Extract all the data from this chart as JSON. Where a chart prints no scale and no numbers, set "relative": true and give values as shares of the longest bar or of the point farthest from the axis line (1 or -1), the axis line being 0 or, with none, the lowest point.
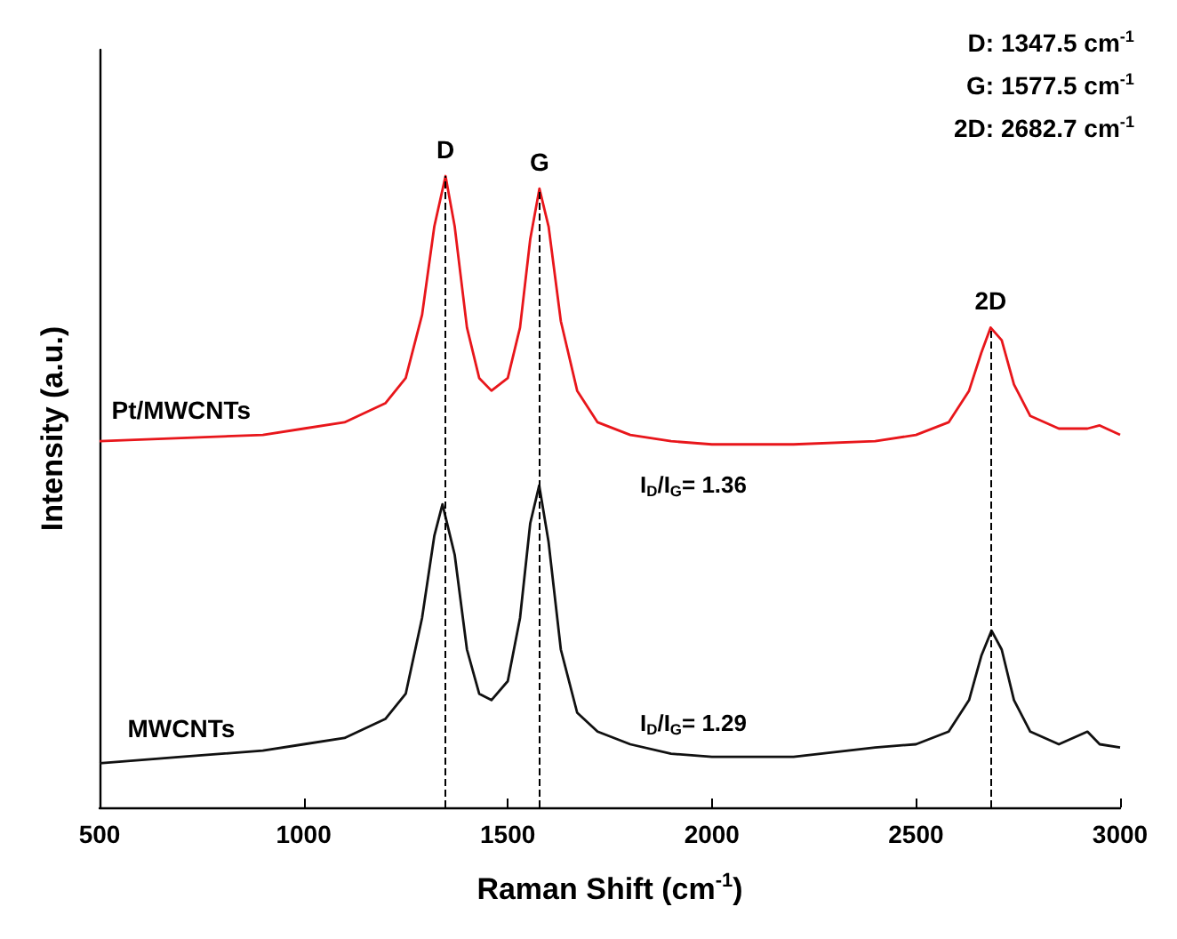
{
  "chart_data": {
    "type": "line",
    "relative": true,
    "xlabel": "Raman Shift (cm$^{-1}$)",
    "ylabel": "Intensity (a.u.)",
    "xlim": [
      500,
      3000
    ],
    "xticks": [
      500,
      1000,
      1500,
      2000,
      2500,
      3000
    ],
    "grid": false,
    "legend": false,
    "marker": "none",
    "line_style": "solid",
    "series": [
      {
        "name": "Pt/MWCNTs",
        "color": "#e8161b",
        "x": [
          500,
          700,
          900,
          1000,
          1100,
          1200,
          1250,
          1290,
          1320,
          1347.5,
          1370,
          1400,
          1430,
          1460,
          1500,
          1530,
          1555,
          1577.5,
          1600,
          1630,
          1670,
          1720,
          1800,
          1900,
          2000,
          2200,
          2400,
          2500,
          2580,
          2630,
          2660,
          2682.7,
          2710,
          2740,
          2780,
          2850,
          2920,
          2950,
          3000
        ],
        "values": [
          0.58,
          0.585,
          0.59,
          0.6,
          0.61,
          0.64,
          0.68,
          0.78,
          0.92,
          1.0,
          0.92,
          0.76,
          0.68,
          0.66,
          0.68,
          0.76,
          0.9,
          0.98,
          0.92,
          0.77,
          0.66,
          0.61,
          0.59,
          0.58,
          0.575,
          0.575,
          0.58,
          0.59,
          0.61,
          0.66,
          0.72,
          0.76,
          0.74,
          0.67,
          0.62,
          0.6,
          0.6,
          0.605,
          0.59
        ]
      },
      {
        "name": "MWCNTs",
        "color": "#111111",
        "x": [
          500,
          700,
          900,
          1000,
          1100,
          1200,
          1250,
          1290,
          1320,
          1340,
          1370,
          1400,
          1430,
          1460,
          1500,
          1530,
          1555,
          1577,
          1600,
          1630,
          1670,
          1720,
          1800,
          1900,
          2000,
          2200,
          2400,
          2500,
          2580,
          2630,
          2660,
          2685,
          2710,
          2740,
          2780,
          2850,
          2920,
          2950,
          3000
        ],
        "values": [
          0.07,
          0.08,
          0.09,
          0.1,
          0.11,
          0.14,
          0.18,
          0.3,
          0.43,
          0.48,
          0.4,
          0.25,
          0.18,
          0.17,
          0.2,
          0.3,
          0.45,
          0.51,
          0.42,
          0.25,
          0.15,
          0.12,
          0.1,
          0.085,
          0.08,
          0.08,
          0.095,
          0.1,
          0.12,
          0.17,
          0.24,
          0.28,
          0.25,
          0.17,
          0.12,
          0.1,
          0.12,
          0.1,
          0.095
        ]
      }
    ],
    "ref_lines": [
      {
        "axis": "x",
        "value": 1347.5,
        "label": "D",
        "color": "#000000",
        "line_style": "dashed"
      },
      {
        "axis": "x",
        "value": 1577.5,
        "label": "G",
        "color": "#000000",
        "line_style": "dashed"
      },
      {
        "axis": "x",
        "value": 2682.7,
        "label": "2D",
        "color": "#000000",
        "line_style": "dashed"
      }
    ],
    "annotations": [
      "D: 1347.5 cm$^{-1}$",
      "G: 1577.5 cm$^{-1}$",
      "2D: 2682.7 cm$^{-1}$",
      "I$_{D}$/I$_{G}$= 1.36",
      "I$_{D}$/I$_{G}$= 1.29"
    ]
  }
}
